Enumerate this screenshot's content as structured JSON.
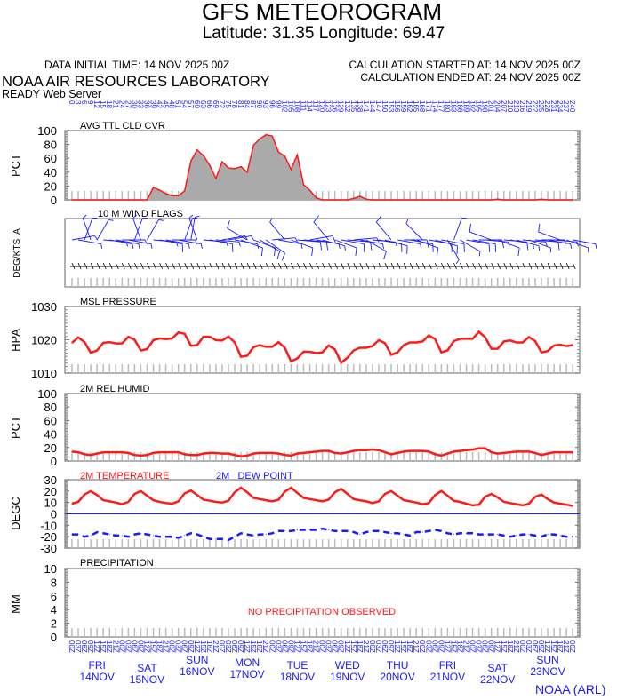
{
  "header": {
    "title": "GFS METEOROGRAM",
    "location": "Latitude: 31.35 Longitude:  69.47",
    "data_initial_time": "DATA INITIAL TIME: 14 NOV 2025 00Z",
    "calc_started": "CALCULATION STARTED AT: 14 NOV 2025 00Z",
    "calc_ended": "CALCULATION ENDED AT: 24 NOV 2025 00Z",
    "org": "NOAA AIR RESOURCES LABORATORY",
    "server": "READY Web Server",
    "credit": "NOAA (ARL)"
  },
  "colors": {
    "red": "#ff1a1a",
    "blue": "#1a1aff",
    "fill": "#aaaaaa"
  },
  "chart_data": {
    "type": "line",
    "x_forecast_hours": [
      0,
      3,
      6,
      9,
      12,
      15,
      18,
      21,
      24,
      27,
      30,
      33,
      36,
      39,
      42,
      45,
      48,
      51,
      54,
      57,
      60,
      63,
      66,
      69,
      72,
      75,
      78,
      81,
      84,
      87,
      90,
      93,
      96,
      99,
      102,
      105,
      108,
      111,
      114,
      117,
      120,
      123,
      126,
      129,
      132,
      135,
      138,
      141,
      144,
      147,
      150,
      153,
      156,
      159,
      162,
      165,
      168,
      171,
      174,
      177,
      180,
      183,
      186,
      189,
      192,
      195,
      198,
      201,
      204,
      207,
      210,
      213,
      216,
      219,
      222,
      225,
      228,
      231,
      234,
      237,
      240
    ],
    "x_utc_labels": [
      "00Z",
      "03Z",
      "06Z",
      "09Z",
      "12Z",
      "15Z",
      "18Z",
      "21Z"
    ],
    "days": [
      {
        "dow": "FRI",
        "date": "14NOV"
      },
      {
        "dow": "SAT",
        "date": "15NOV"
      },
      {
        "dow": "SUN",
        "date": "16NOV"
      },
      {
        "dow": "MON",
        "date": "17NOV"
      },
      {
        "dow": "TUE",
        "date": "18NOV"
      },
      {
        "dow": "WED",
        "date": "19NOV"
      },
      {
        "dow": "THU",
        "date": "20NOV"
      },
      {
        "dow": "FRI",
        "date": "21NOV"
      },
      {
        "dow": "SAT",
        "date": "22NOV"
      },
      {
        "dow": "SUN",
        "date": "23NOV"
      }
    ],
    "panels": {
      "cloud": {
        "title": "AVG TTL CLD CVR",
        "ylabel": "PCT",
        "ylim": [
          0,
          100
        ],
        "ticks": [
          "0",
          "20",
          "40",
          "60",
          "80",
          "100"
        ],
        "values": [
          0,
          0,
          0,
          0,
          0,
          0,
          0,
          0,
          0,
          0,
          0,
          0,
          0,
          18,
          14,
          9,
          6,
          6,
          13,
          56,
          72,
          64,
          50,
          31,
          55,
          46,
          45,
          48,
          40,
          79,
          88,
          94,
          92,
          69,
          63,
          44,
          65,
          22,
          14,
          3,
          0,
          0,
          0,
          0,
          0,
          2,
          5,
          1,
          0,
          0,
          0,
          0,
          0,
          0,
          0,
          0,
          0,
          0,
          0,
          0,
          0,
          0,
          0,
          0,
          0,
          0,
          0,
          0,
          1,
          0,
          0,
          0,
          0,
          0,
          0,
          1,
          0,
          0,
          0,
          0,
          0
        ]
      },
      "wind": {
        "title": "10 M  WIND FLAGS",
        "ylabel": "DEG/KTS  A",
        "direction_deg": [
          80,
          100,
          20,
          340,
          30,
          95,
          100,
          100,
          90,
          100,
          20,
          340,
          30,
          95,
          100,
          100,
          90,
          100,
          20,
          10,
          340,
          95,
          100,
          95,
          80,
          80,
          100,
          110,
          300,
          110,
          120,
          125,
          85,
          100,
          320,
          110,
          95,
          95,
          80,
          100,
          105,
          320,
          110,
          100,
          95,
          85,
          100,
          120,
          95,
          100,
          105,
          320,
          100,
          90,
          100,
          110,
          315,
          100,
          105,
          100,
          150,
          20,
          120,
          100,
          100,
          90,
          95,
          290,
          110,
          95,
          100,
          105,
          95,
          110,
          95,
          90,
          100,
          95,
          290,
          110,
          100
        ],
        "speed_kt": [
          5,
          7,
          6,
          8,
          9,
          7,
          8,
          9,
          7,
          6,
          6,
          9,
          8,
          9,
          10,
          8,
          5,
          7,
          6,
          9,
          8,
          9,
          10,
          9,
          8,
          6,
          7,
          10,
          12,
          11,
          12,
          10,
          9,
          9,
          8,
          12,
          11,
          12,
          10,
          8,
          6,
          10,
          12,
          11,
          10,
          9,
          8,
          10,
          9,
          11,
          12,
          10,
          9,
          10,
          11,
          12,
          9,
          10,
          11,
          12,
          8,
          7,
          9,
          10,
          11,
          12,
          9,
          10,
          11,
          10,
          9,
          8,
          7,
          9,
          10,
          9,
          8,
          9,
          10,
          9,
          8
        ]
      },
      "pressure": {
        "title": "MSL PRESSURE",
        "ylabel": "HPA",
        "ylim": [
          1010,
          1030
        ],
        "ticks": [
          "1010",
          "1020",
          "1030"
        ],
        "values": [
          1019.1,
          1020.7,
          1019.3,
          1016.1,
          1016.8,
          1019.1,
          1019.3,
          1018.9,
          1018.9,
          1020.9,
          1020.0,
          1016.8,
          1017.2,
          1019.9,
          1020.4,
          1020.2,
          1020.4,
          1022.2,
          1021.8,
          1018.2,
          1018.4,
          1020.9,
          1020.9,
          1019.9,
          1019.8,
          1021.0,
          1019.2,
          1014.9,
          1015.2,
          1017.8,
          1018.4,
          1017.9,
          1017.9,
          1019.3,
          1017.6,
          1013.5,
          1014.4,
          1016.4,
          1016.4,
          1016.0,
          1016.2,
          1018.3,
          1017.1,
          1013.1,
          1014.6,
          1016.8,
          1017.6,
          1017.6,
          1018.1,
          1019.9,
          1019.0,
          1015.5,
          1016.2,
          1018.4,
          1019.2,
          1019.2,
          1019.5,
          1021.3,
          1020.2,
          1016.2,
          1016.8,
          1019.6,
          1020.3,
          1020.3,
          1020.3,
          1022.4,
          1020.8,
          1017.3,
          1017.3,
          1019.5,
          1019.8,
          1019.2,
          1019.2,
          1020.8,
          1019.6,
          1016.2,
          1016.6,
          1018.3,
          1018.5,
          1018.1,
          1018.4
        ]
      },
      "humidity": {
        "title": "2M REL HUMID",
        "ylabel": "PCT",
        "ylim": [
          0,
          100
        ],
        "ticks": [
          "0",
          "20",
          "40",
          "60",
          "80",
          "100"
        ],
        "values": [
          14,
          13,
          10,
          9,
          11,
          13,
          13,
          13,
          13,
          12,
          9,
          8,
          9,
          12,
          13,
          13,
          13,
          13,
          10,
          9,
          9,
          11,
          12,
          12,
          11,
          11,
          9,
          7,
          8,
          11,
          12,
          12,
          12,
          11,
          9,
          8,
          11,
          12,
          13,
          14,
          15,
          15,
          12,
          11,
          13,
          15,
          16,
          16,
          17,
          16,
          13,
          10,
          12,
          14,
          15,
          15,
          15,
          14,
          10,
          8,
          11,
          14,
          15,
          16,
          17,
          19,
          19,
          13,
          11,
          12,
          13,
          14,
          14,
          14,
          12,
          9,
          11,
          13,
          13,
          13,
          13
        ]
      },
      "temperature": {
        "title": "2M TEMPERATURE",
        "dew_title": "2M   DEW POINT",
        "ylabel": "DEGC",
        "ylim": [
          -30,
          30
        ],
        "ticks": [
          "-30",
          "-20",
          "-10",
          "0",
          "10",
          "20",
          "30"
        ],
        "temp": [
          9,
          10.5,
          17,
          20,
          16.5,
          12,
          11,
          10,
          8.5,
          10.5,
          17.5,
          20,
          16,
          12,
          10.5,
          9.5,
          9,
          11,
          18,
          20.5,
          16.5,
          12.5,
          11.5,
          10.5,
          10,
          11.5,
          19,
          23,
          19,
          14,
          13,
          12,
          11,
          12.5,
          19.5,
          23,
          18.5,
          14,
          13,
          12,
          11,
          12.5,
          19,
          22,
          17.5,
          13,
          12,
          11,
          9.5,
          11,
          17.5,
          20,
          16,
          12,
          11,
          10,
          8.5,
          9.5,
          16.5,
          20,
          16,
          11.5,
          10.5,
          9,
          7.5,
          8,
          15,
          17.5,
          14.5,
          10.5,
          9.5,
          8.5,
          7.5,
          9,
          15,
          17,
          13,
          10,
          9,
          8,
          7
        ],
        "dew": [
          -18,
          -18,
          -20,
          -19,
          -16,
          -17,
          -18,
          -19,
          -19,
          -20,
          -18,
          -17,
          -18,
          -19,
          -20,
          -20,
          -20,
          -21,
          -19,
          -17,
          -18,
          -20,
          -22,
          -22,
          -22,
          -23,
          -20,
          -17,
          -18,
          -19,
          -18,
          -18,
          -17,
          -15,
          -15,
          -15,
          -14,
          -14,
          -14,
          -14,
          -13,
          -14,
          -15,
          -15,
          -15,
          -16,
          -18,
          -16,
          -15,
          -15,
          -16,
          -17,
          -17,
          -18,
          -19,
          -16,
          -16,
          -15,
          -14,
          -15,
          -17,
          -18,
          -17,
          -17,
          -17,
          -18,
          -18,
          -18,
          -18,
          -19,
          -20,
          -19,
          -18,
          -18,
          -19,
          -20,
          -18,
          -18,
          -19,
          -20,
          -20
        ]
      },
      "precip": {
        "title": "PRECIPITATION",
        "ylabel": "MM",
        "ylim": [
          0,
          10
        ],
        "ticks": [
          "0",
          "2",
          "4",
          "6",
          "8",
          "10"
        ],
        "note": "NO PRECIPITATION OBSERVED"
      }
    }
  }
}
